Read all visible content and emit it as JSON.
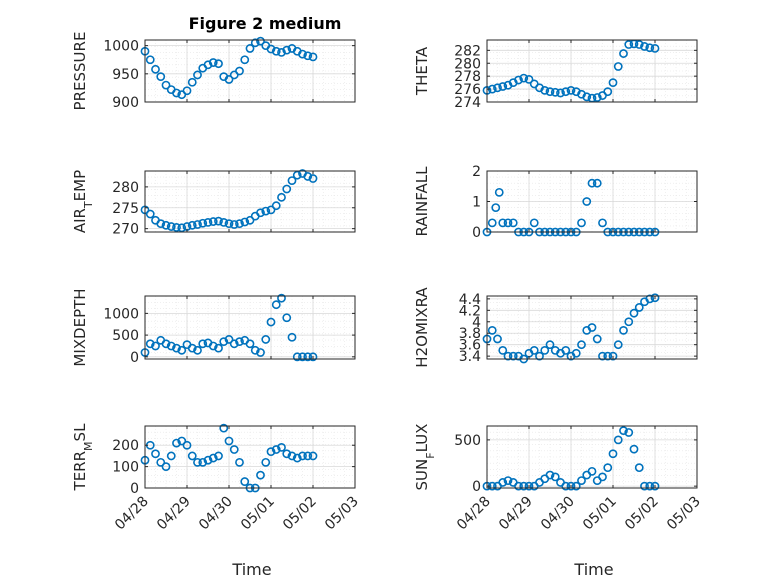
{
  "figure": {
    "title": "Figure 2 medium",
    "xlabel": "Time"
  },
  "chart_data": [
    {
      "type": "scatter",
      "title": "Figure 2 medium",
      "ylabel": "PRESSURE",
      "ylim": [
        900,
        1010
      ],
      "yticks": [
        "900",
        "950",
        "1000"
      ],
      "yticks_values": [
        900,
        950,
        1000
      ],
      "xlim": [
        "04/28",
        "05/03"
      ],
      "xticks": [
        "04/28",
        "04/29",
        "04/30",
        "05/01",
        "05/02",
        "05/03"
      ],
      "x": [
        "04/28 00:00",
        "04/28 03:00",
        "04/28 06:00",
        "04/28 09:00",
        "04/28 12:00",
        "04/28 15:00",
        "04/28 18:00",
        "04/28 21:00",
        "04/29 00:00",
        "04/29 03:00",
        "04/29 06:00",
        "04/29 09:00",
        "04/29 12:00",
        "04/29 15:00",
        "04/29 18:00",
        "04/29 21:00",
        "04/30 00:00",
        "04/30 03:00",
        "04/30 06:00",
        "04/30 09:00",
        "04/30 12:00",
        "04/30 15:00",
        "04/30 18:00",
        "04/30 21:00",
        "05/01 00:00",
        "05/01 03:00",
        "05/01 06:00",
        "05/01 09:00",
        "05/01 12:00",
        "05/01 15:00",
        "05/01 18:00",
        "05/01 21:00",
        "05/02 00:00"
      ],
      "y": [
        990,
        975,
        958,
        945,
        930,
        922,
        916,
        913,
        920,
        935,
        948,
        960,
        966,
        970,
        968,
        945,
        940,
        948,
        955,
        975,
        995,
        1005,
        1008,
        1000,
        994,
        990,
        988,
        992,
        995,
        990,
        985,
        982,
        980
      ],
      "grid": true
    },
    {
      "type": "scatter",
      "ylabel": "THETA",
      "ylim": [
        274,
        283.6
      ],
      "yticks": [
        "274",
        "276",
        "278",
        "280",
        "282"
      ],
      "yticks_values": [
        274,
        276,
        278,
        280,
        282
      ],
      "xlim": [
        "04/28",
        "05/03"
      ],
      "xticks": [
        "04/28",
        "04/29",
        "04/30",
        "05/01",
        "05/02",
        "05/03"
      ],
      "x": [
        "04/28 00:00",
        "04/28 03:00",
        "04/28 06:00",
        "04/28 09:00",
        "04/28 12:00",
        "04/28 15:00",
        "04/28 18:00",
        "04/28 21:00",
        "04/29 00:00",
        "04/29 03:00",
        "04/29 06:00",
        "04/29 09:00",
        "04/29 12:00",
        "04/29 15:00",
        "04/29 18:00",
        "04/29 21:00",
        "04/30 00:00",
        "04/30 03:00",
        "04/30 06:00",
        "04/30 09:00",
        "04/30 12:00",
        "04/30 15:00",
        "04/30 18:00",
        "04/30 21:00",
        "05/01 00:00",
        "05/01 03:00",
        "05/01 06:00",
        "05/01 09:00",
        "05/01 12:00",
        "05/01 15:00",
        "05/01 18:00",
        "05/01 21:00",
        "05/02 00:00"
      ],
      "y": [
        275.8,
        276.0,
        276.2,
        276.4,
        276.6,
        277.0,
        277.4,
        277.7,
        277.5,
        276.8,
        276.2,
        275.8,
        275.6,
        275.5,
        275.4,
        275.6,
        275.8,
        275.6,
        275.2,
        274.8,
        274.6,
        274.7,
        275.0,
        275.6,
        277.0,
        279.5,
        281.5,
        282.9,
        283.0,
        282.9,
        282.6,
        282.4,
        282.3
      ],
      "grid": true
    },
    {
      "type": "scatter",
      "ylabel": "AIR_TEMP",
      "ylim": [
        269.2,
        283.8
      ],
      "yticks": [
        "270",
        "275",
        "280"
      ],
      "yticks_values": [
        270,
        275,
        280
      ],
      "xlim": [
        "04/28",
        "05/03"
      ],
      "xticks": [
        "04/28",
        "04/29",
        "04/30",
        "05/01",
        "05/02",
        "05/03"
      ],
      "x": [
        "04/28 00:00",
        "04/28 03:00",
        "04/28 06:00",
        "04/28 09:00",
        "04/28 12:00",
        "04/28 15:00",
        "04/28 18:00",
        "04/28 21:00",
        "04/29 00:00",
        "04/29 03:00",
        "04/29 06:00",
        "04/29 09:00",
        "04/29 12:00",
        "04/29 15:00",
        "04/29 18:00",
        "04/29 21:00",
        "04/30 00:00",
        "04/30 03:00",
        "04/30 06:00",
        "04/30 09:00",
        "04/30 12:00",
        "04/30 15:00",
        "04/30 18:00",
        "04/30 21:00",
        "05/01 00:00",
        "05/01 03:00",
        "05/01 06:00",
        "05/01 09:00",
        "05/01 12:00",
        "05/01 15:00",
        "05/01 18:00",
        "05/01 21:00",
        "05/02 00:00"
      ],
      "y": [
        274.5,
        273.5,
        272.0,
        271.2,
        270.8,
        270.5,
        270.3,
        270.2,
        270.5,
        270.8,
        271.0,
        271.3,
        271.5,
        271.7,
        271.8,
        271.5,
        271.2,
        271.0,
        271.2,
        271.6,
        272.0,
        273.0,
        273.8,
        274.2,
        274.5,
        275.5,
        277.5,
        279.5,
        281.5,
        282.8,
        283.2,
        282.5,
        282.0
      ],
      "grid": true
    },
    {
      "type": "scatter",
      "ylabel": "RAINFALL",
      "ylim": [
        0,
        2
      ],
      "yticks": [
        "0",
        "1",
        "2"
      ],
      "yticks_values": [
        0,
        1,
        2
      ],
      "xlim": [
        "04/28",
        "05/03"
      ],
      "xticks": [
        "04/28",
        "04/29",
        "04/30",
        "05/01",
        "05/02",
        "05/03"
      ],
      "x": [
        "04/28 00:00",
        "04/28 03:00",
        "04/28 05:00",
        "04/28 07:00",
        "04/28 09:00",
        "04/28 12:00",
        "04/28 15:00",
        "04/28 18:00",
        "04/28 21:00",
        "04/29 00:00",
        "04/29 03:00",
        "04/29 06:00",
        "04/29 09:00",
        "04/29 12:00",
        "04/29 15:00",
        "04/29 18:00",
        "04/29 21:00",
        "04/30 00:00",
        "04/30 03:00",
        "04/30 06:00",
        "04/30 09:00",
        "04/30 12:00",
        "04/30 15:00",
        "04/30 18:00",
        "04/30 21:00",
        "05/01 00:00",
        "05/01 03:00",
        "05/01 06:00",
        "05/01 09:00",
        "05/01 12:00",
        "05/01 15:00",
        "05/01 18:00",
        "05/01 21:00",
        "05/02 00:00"
      ],
      "y": [
        0,
        0.3,
        0.8,
        1.3,
        0.3,
        0.3,
        0.3,
        0,
        0,
        0,
        0.3,
        0,
        0,
        0,
        0,
        0,
        0,
        0,
        0,
        0.3,
        1.0,
        1.6,
        1.6,
        0.3,
        0,
        0,
        0,
        0,
        0,
        0,
        0,
        0,
        0,
        0
      ],
      "grid": true
    },
    {
      "type": "scatter",
      "ylabel": "MIXDEPTH",
      "ylim": [
        -50,
        1400
      ],
      "yticks": [
        "0",
        "500",
        "1000"
      ],
      "yticks_values": [
        0,
        500,
        1000
      ],
      "xlim": [
        "04/28",
        "05/03"
      ],
      "xticks": [
        "04/28",
        "04/29",
        "04/30",
        "05/01",
        "05/02",
        "05/03"
      ],
      "x": [
        "04/28 00:00",
        "04/28 03:00",
        "04/28 06:00",
        "04/28 09:00",
        "04/28 12:00",
        "04/28 15:00",
        "04/28 18:00",
        "04/28 21:00",
        "04/29 00:00",
        "04/29 03:00",
        "04/29 06:00",
        "04/29 09:00",
        "04/29 12:00",
        "04/29 15:00",
        "04/29 18:00",
        "04/29 21:00",
        "04/30 00:00",
        "04/30 03:00",
        "04/30 06:00",
        "04/30 09:00",
        "04/30 12:00",
        "04/30 15:00",
        "04/30 18:00",
        "04/30 21:00",
        "05/01 00:00",
        "05/01 03:00",
        "05/01 06:00",
        "05/01 09:00",
        "05/01 12:00",
        "05/01 15:00",
        "05/01 18:00",
        "05/01 21:00",
        "05/02 00:00"
      ],
      "y": [
        100,
        300,
        250,
        380,
        300,
        250,
        200,
        150,
        280,
        200,
        150,
        300,
        320,
        250,
        200,
        350,
        400,
        300,
        350,
        380,
        300,
        150,
        100,
        400,
        800,
        1200,
        1350,
        900,
        450,
        0,
        0,
        0,
        0
      ],
      "grid": true
    },
    {
      "type": "scatter",
      "ylabel": "H2OMIXRA",
      "ylim": [
        3.35,
        4.45
      ],
      "yticks": [
        "3.4",
        "3.6",
        "3.8",
        "4",
        "4.2",
        "4.4"
      ],
      "yticks_values": [
        3.4,
        3.6,
        3.8,
        4.0,
        4.2,
        4.4
      ],
      "xlim": [
        "04/28",
        "05/03"
      ],
      "xticks": [
        "04/28",
        "04/29",
        "04/30",
        "05/01",
        "05/02",
        "05/03"
      ],
      "x": [
        "04/28 00:00",
        "04/28 03:00",
        "04/28 06:00",
        "04/28 09:00",
        "04/28 12:00",
        "04/28 15:00",
        "04/28 18:00",
        "04/28 21:00",
        "04/29 00:00",
        "04/29 03:00",
        "04/29 06:00",
        "04/29 09:00",
        "04/29 12:00",
        "04/29 15:00",
        "04/29 18:00",
        "04/29 21:00",
        "04/30 00:00",
        "04/30 03:00",
        "04/30 06:00",
        "04/30 09:00",
        "04/30 12:00",
        "04/30 15:00",
        "04/30 18:00",
        "04/30 21:00",
        "05/01 00:00",
        "05/01 03:00",
        "05/01 06:00",
        "05/01 09:00",
        "05/01 12:00",
        "05/01 15:00",
        "05/01 18:00",
        "05/01 21:00",
        "05/02 00:00"
      ],
      "y": [
        3.7,
        3.85,
        3.7,
        3.5,
        3.4,
        3.4,
        3.4,
        3.35,
        3.45,
        3.5,
        3.4,
        3.5,
        3.6,
        3.5,
        3.45,
        3.5,
        3.4,
        3.45,
        3.6,
        3.85,
        3.9,
        3.7,
        3.4,
        3.4,
        3.4,
        3.6,
        3.85,
        4.0,
        4.15,
        4.25,
        4.35,
        4.4,
        4.42
      ],
      "grid": true
    },
    {
      "type": "scatter",
      "ylabel": "TERR_MSL",
      "xlabel": "Time",
      "ylim": [
        0,
        290
      ],
      "yticks": [
        "0",
        "100",
        "200"
      ],
      "yticks_values": [
        0,
        100,
        200
      ],
      "xlim": [
        "04/28",
        "05/03"
      ],
      "xticks": [
        "04/28",
        "04/29",
        "04/30",
        "05/01",
        "05/02",
        "05/03"
      ],
      "x": [
        "04/28 00:00",
        "04/28 03:00",
        "04/28 06:00",
        "04/28 09:00",
        "04/28 12:00",
        "04/28 15:00",
        "04/28 18:00",
        "04/28 21:00",
        "04/29 00:00",
        "04/29 03:00",
        "04/29 06:00",
        "04/29 09:00",
        "04/29 12:00",
        "04/29 15:00",
        "04/29 18:00",
        "04/29 21:00",
        "04/30 00:00",
        "04/30 03:00",
        "04/30 06:00",
        "04/30 09:00",
        "04/30 12:00",
        "04/30 15:00",
        "04/30 18:00",
        "04/30 21:00",
        "05/01 00:00",
        "05/01 03:00",
        "05/01 06:00",
        "05/01 09:00",
        "05/01 12:00",
        "05/01 15:00",
        "05/01 18:00",
        "05/01 21:00",
        "05/02 00:00"
      ],
      "y": [
        130,
        200,
        160,
        120,
        100,
        150,
        210,
        220,
        200,
        150,
        120,
        120,
        130,
        140,
        150,
        280,
        220,
        180,
        120,
        30,
        0,
        0,
        60,
        120,
        170,
        180,
        190,
        160,
        150,
        140,
        150,
        150,
        150
      ],
      "grid": true
    },
    {
      "type": "scatter",
      "ylabel": "SUN_FLUX",
      "xlabel": "Time",
      "ylim": [
        -20,
        650
      ],
      "yticks": [
        "0",
        "500"
      ],
      "yticks_values": [
        0,
        500
      ],
      "xlim": [
        "04/28",
        "05/03"
      ],
      "xticks": [
        "04/28",
        "04/29",
        "04/30",
        "05/01",
        "05/02",
        "05/03"
      ],
      "x": [
        "04/28 00:00",
        "04/28 03:00",
        "04/28 06:00",
        "04/28 09:00",
        "04/28 12:00",
        "04/28 15:00",
        "04/28 18:00",
        "04/28 21:00",
        "04/29 00:00",
        "04/29 03:00",
        "04/29 06:00",
        "04/29 09:00",
        "04/29 12:00",
        "04/29 15:00",
        "04/29 18:00",
        "04/29 21:00",
        "04/30 00:00",
        "04/30 03:00",
        "04/30 06:00",
        "04/30 09:00",
        "04/30 12:00",
        "04/30 15:00",
        "04/30 18:00",
        "04/30 21:00",
        "05/01 00:00",
        "05/01 03:00",
        "05/01 06:00",
        "05/01 09:00",
        "05/01 12:00",
        "05/01 15:00",
        "05/01 18:00",
        "05/01 21:00",
        "05/02 00:00"
      ],
      "y": [
        0,
        0,
        0,
        40,
        60,
        40,
        0,
        0,
        0,
        0,
        40,
        80,
        120,
        100,
        40,
        0,
        0,
        0,
        60,
        120,
        160,
        60,
        100,
        200,
        350,
        500,
        600,
        580,
        400,
        200,
        0,
        0,
        0
      ],
      "grid": true
    }
  ]
}
